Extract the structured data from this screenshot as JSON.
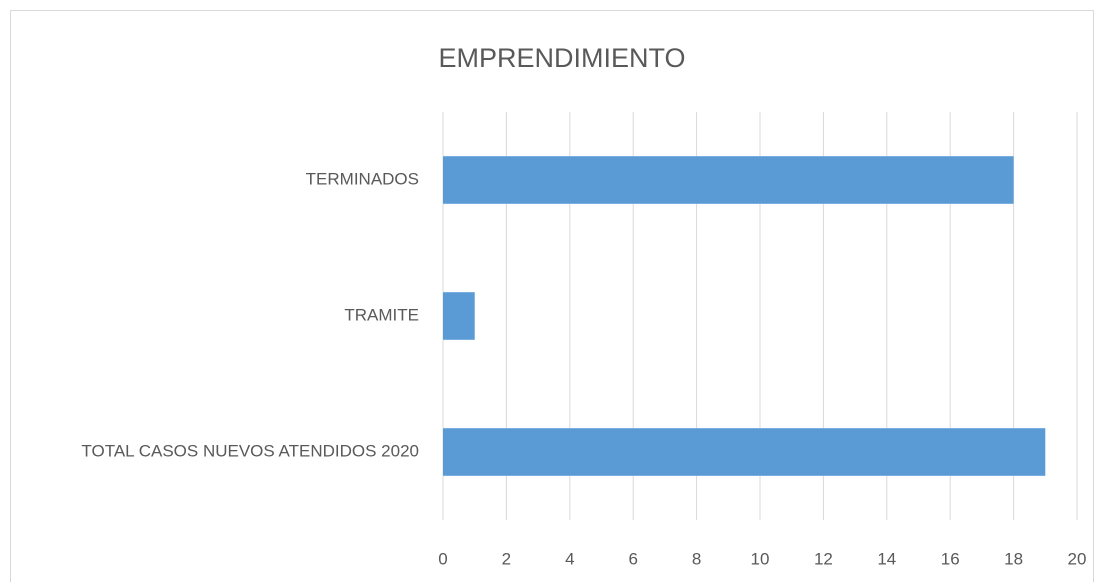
{
  "chart_data": {
    "type": "bar",
    "orientation": "horizontal",
    "title": "EMPRENDIMIENTO",
    "categories": [
      "TERMINADOS",
      "TRAMITE",
      "TOTAL CASOS NUEVOS ATENDIDOS 2020"
    ],
    "values": [
      18,
      1,
      19
    ],
    "color": "#5b9bd5",
    "xlim": [
      0,
      20
    ],
    "xticks": [
      0,
      2,
      4,
      6,
      8,
      10,
      12,
      14,
      16,
      18,
      20
    ],
    "grid": true
  }
}
